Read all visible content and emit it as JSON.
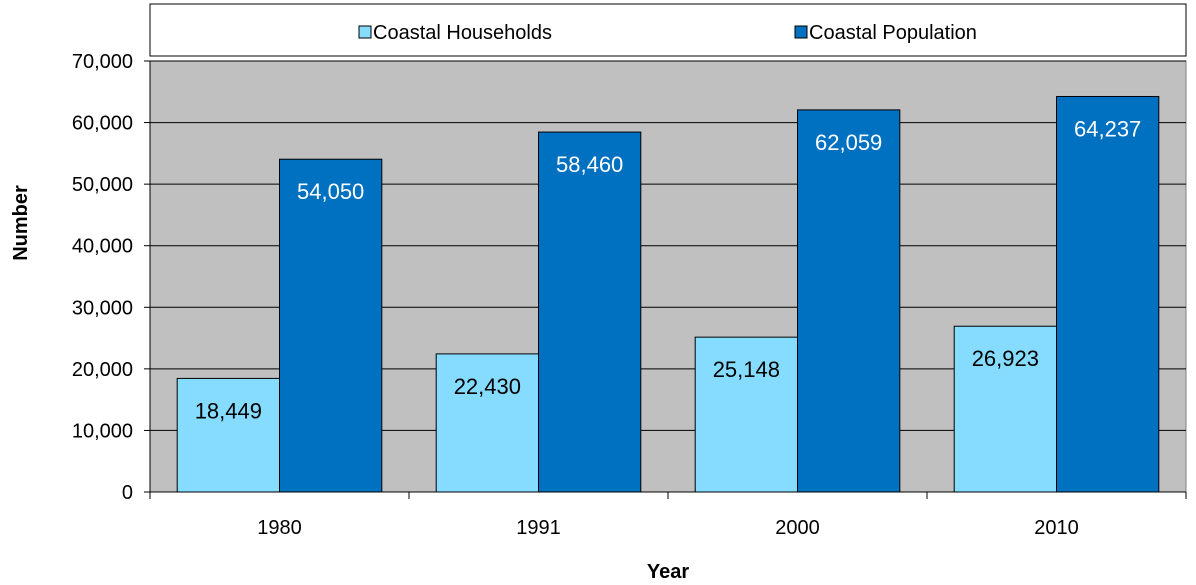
{
  "chart_data": {
    "type": "bar",
    "categories": [
      "1980",
      "1991",
      "2000",
      "2010"
    ],
    "series": [
      {
        "name": "Coastal Households",
        "values": [
          18449,
          22430,
          25148,
          26923
        ],
        "color": "#86dcff",
        "label_color": "#000000"
      },
      {
        "name": "Coastal Population",
        "values": [
          54050,
          58460,
          62059,
          64237
        ],
        "color": "#0070c0",
        "label_color": "#ffffff"
      }
    ],
    "data_labels": [
      [
        "18,449",
        "22,430",
        "25,148",
        "26,923"
      ],
      [
        "54,050",
        "58,460",
        "62,059",
        "64,237"
      ]
    ],
    "yticks": [
      "0",
      "10,000",
      "20,000",
      "30,000",
      "40,000",
      "50,000",
      "60,000",
      "70,000"
    ],
    "ylim": [
      0,
      70000
    ],
    "ystep": 10000,
    "xlabel": "Year",
    "ylabel": "Number",
    "grid": true,
    "legend_position": "top",
    "plot_background": "#c0c0c0"
  }
}
